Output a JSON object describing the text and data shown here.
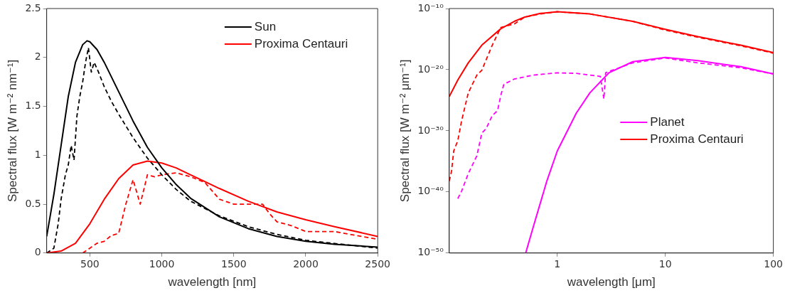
{
  "chart_data": [
    {
      "type": "line",
      "xlabel": "wavelength [nm]",
      "ylabel": "Spectral flux [W m⁻² nm⁻¹]",
      "xlim": [
        200,
        2500
      ],
      "xticks": [
        500,
        1000,
        1500,
        2000,
        2500
      ],
      "ylim": [
        0,
        2.5
      ],
      "yticks": [
        0,
        0.5,
        1,
        1.5,
        2,
        2.5
      ],
      "grid": false,
      "legend": "top right",
      "series": [
        {
          "name": "Sun",
          "color": "#000000",
          "line_style": "solid",
          "x": [
            200,
            250,
            300,
            350,
            400,
            450,
            480,
            500,
            550,
            600,
            700,
            800,
            900,
            1000,
            1100,
            1200,
            1400,
            1600,
            1800,
            2000,
            2200,
            2500
          ],
          "values": [
            0.17,
            0.6,
            1.1,
            1.6,
            1.95,
            2.13,
            2.17,
            2.16,
            2.08,
            1.95,
            1.65,
            1.35,
            1.08,
            0.87,
            0.7,
            0.56,
            0.37,
            0.25,
            0.17,
            0.12,
            0.09,
            0.06
          ]
        },
        {
          "name": "Proxima Centauri",
          "color": "#ff0000",
          "line_style": "solid",
          "x": [
            200,
            300,
            400,
            500,
            600,
            700,
            800,
            900,
            1000,
            1100,
            1200,
            1400,
            1600,
            1800,
            2000,
            2200,
            2500
          ],
          "values": [
            0.0,
            0.02,
            0.1,
            0.3,
            0.55,
            0.76,
            0.9,
            0.94,
            0.92,
            0.87,
            0.8,
            0.66,
            0.53,
            0.42,
            0.34,
            0.27,
            0.17
          ]
        },
        {
          "color": "#000000",
          "line_style": "dashed",
          "x": [
            200,
            250,
            280,
            300,
            330,
            350,
            370,
            390,
            410,
            430,
            450,
            470,
            490,
            510,
            530,
            560,
            600,
            650,
            700,
            750,
            800,
            900,
            1000,
            1100,
            1200,
            1400,
            1600,
            1800,
            2000,
            2500
          ],
          "values": [
            0.0,
            0.05,
            0.3,
            0.55,
            0.8,
            0.9,
            1.1,
            0.95,
            1.4,
            1.6,
            1.75,
            1.95,
            2.1,
            1.85,
            1.95,
            1.85,
            1.7,
            1.55,
            1.42,
            1.3,
            1.18,
            0.97,
            0.8,
            0.65,
            0.53,
            0.38,
            0.27,
            0.19,
            0.13,
            0.05
          ]
        },
        {
          "color": "#ff0000",
          "line_style": "dashed",
          "x": [
            450,
            500,
            550,
            600,
            650,
            700,
            750,
            800,
            850,
            900,
            950,
            1000,
            1100,
            1200,
            1300,
            1400,
            1500,
            1600,
            1700,
            1750,
            1800,
            1900,
            2000,
            2200,
            2500
          ],
          "values": [
            0.0,
            0.05,
            0.1,
            0.12,
            0.18,
            0.2,
            0.5,
            0.75,
            0.5,
            0.8,
            0.78,
            0.8,
            0.82,
            0.78,
            0.72,
            0.55,
            0.5,
            0.5,
            0.5,
            0.4,
            0.32,
            0.28,
            0.22,
            0.22,
            0.14
          ]
        }
      ]
    },
    {
      "type": "line",
      "xlabel": "wavelength [μm]",
      "ylabel": "Spectral flux [W m⁻² μm⁻¹]",
      "log": "xy",
      "xlim": [
        0.1,
        100
      ],
      "xticks": [
        1,
        10,
        100
      ],
      "ylim": [
        1e-50,
        1e-10
      ],
      "yticks": [
        {
          "value": 1e-50,
          "label": "10⁻⁵⁰"
        },
        {
          "value": 1e-40,
          "label": "10⁻⁴⁰"
        },
        {
          "value": 1e-30,
          "label": "10⁻³⁰"
        },
        {
          "value": 1e-20,
          "label": "10⁻²⁰"
        },
        {
          "value": 1e-10,
          "label": "10⁻¹⁰"
        }
      ],
      "grid": false,
      "legend": "right",
      "series": [
        {
          "name": "Planet",
          "color": "#ff00ff",
          "line_style": "solid",
          "x": [
            0.51,
            0.6,
            0.8,
            1,
            1.5,
            2,
            3,
            5,
            10,
            20,
            50,
            100
          ],
          "values": [
            1e-50,
            2e-46,
            6e-39,
            5e-34,
            8e-28,
            1.6e-24,
            3e-21,
            2e-19,
            1e-18,
            3e-19,
            3e-20,
            2e-21
          ]
        },
        {
          "name": "Proxima Centauri",
          "color": "#ff0000",
          "line_style": "solid",
          "x": [
            0.1,
            0.12,
            0.15,
            0.2,
            0.3,
            0.4,
            0.5,
            0.7,
            1,
            2,
            5,
            10,
            20,
            50,
            100
          ],
          "values": [
            4e-25,
            2e-22,
            1.3e-19,
            1e-16,
            5e-14,
            8e-13,
            4e-12,
            1.6e-11,
            3e-11,
            1.3e-11,
            8e-13,
            4e-14,
            2.5e-15,
            1e-16,
            6e-18
          ]
        },
        {
          "color": "#ff00ff",
          "line_style": "dashed",
          "x": [
            0.12,
            0.13,
            0.15,
            0.18,
            0.2,
            0.22,
            0.25,
            0.28,
            0.3,
            0.32,
            0.4,
            0.6,
            1,
            1.5,
            2,
            2.5,
            2.7,
            2.8,
            3,
            5,
            10,
            20,
            50,
            100
          ],
          "values": [
            8e-42,
            1.3e-40,
            1e-37,
            8e-35,
            4e-31,
            2.5e-30,
            3e-28,
            2e-27,
            6e-25,
            4e-23,
            3e-22,
            1.3e-21,
            3e-21,
            2.5e-21,
            1.3e-21,
            8e-22,
            1.6e-25,
            3e-21,
            5e-21,
            1.3e-19,
            8e-19,
            1.3e-19,
            2e-20,
            2e-21
          ]
        },
        {
          "color": "#ff0000",
          "line_style": "dashed",
          "x": [
            0.1,
            0.105,
            0.11,
            0.12,
            0.13,
            0.15,
            0.18,
            0.2,
            0.25,
            0.3,
            0.4,
            0.5,
            0.7,
            1,
            2,
            5,
            10,
            20,
            50,
            100
          ],
          "values": [
            6e-39,
            2.5e-37,
            5e-34,
            2.5e-32,
            4e-29,
            1.6e-24,
            1.3e-21,
            8e-21,
            1e-16,
            8e-14,
            3e-13,
            4e-12,
            1.3e-11,
            3e-11,
            1.3e-11,
            8e-13,
            3e-14,
            2e-15,
            8e-17,
            5e-18
          ]
        }
      ]
    }
  ]
}
